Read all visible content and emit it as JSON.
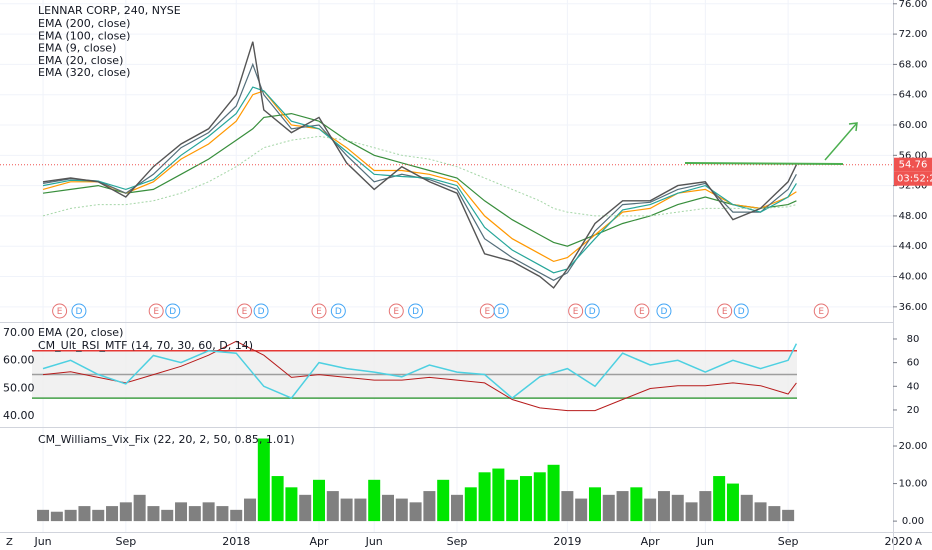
{
  "chart_data": [
    {
      "type": "line",
      "title": "LENNAR CORP, 240, NYSE",
      "xlim": [
        -1.56,
        30.8
      ],
      "xticks": [
        {
          "value": 0,
          "label": "Jun"
        },
        {
          "value": 3,
          "label": "Sep"
        },
        {
          "value": 7,
          "label": "2018"
        },
        {
          "value": 10,
          "label": "Apr"
        },
        {
          "value": 12,
          "label": "Jun"
        },
        {
          "value": 15,
          "label": "Sep"
        },
        {
          "value": 19,
          "label": "2019"
        },
        {
          "value": 22,
          "label": "Apr"
        },
        {
          "value": 24,
          "label": "Jun"
        },
        {
          "value": 27,
          "label": "Sep"
        },
        {
          "value": 31,
          "label": "2020"
        }
      ],
      "ylim": [
        34.0,
        76.5
      ],
      "yticks": [
        {
          "value": 36,
          "label": "36.00"
        },
        {
          "value": 40,
          "label": "40.00"
        },
        {
          "value": 44,
          "label": "44.00"
        },
        {
          "value": 48,
          "label": "48.00"
        },
        {
          "value": 52,
          "label": "52.00"
        },
        {
          "value": 56,
          "label": "56.00"
        },
        {
          "value": 60,
          "label": "60.00"
        },
        {
          "value": 64,
          "label": "64.00"
        },
        {
          "value": 68,
          "label": "68.00"
        },
        {
          "value": 72,
          "label": "72.00"
        },
        {
          "value": 76,
          "label": "76.00"
        }
      ],
      "grid": true,
      "x": [
        0,
        1,
        2,
        3,
        4,
        5,
        6,
        7,
        7.6,
        8,
        9,
        10,
        11,
        12,
        13,
        14,
        15,
        16,
        17,
        18,
        18.5,
        19,
        20,
        21,
        22,
        23,
        24,
        25,
        26,
        27,
        27.3
      ],
      "values": [
        52.5,
        53,
        52.5,
        50.5,
        54.5,
        57.5,
        59.5,
        64,
        71,
        62,
        59,
        61,
        55,
        51.5,
        54.5,
        52.5,
        51,
        43,
        42,
        40,
        38.5,
        41,
        47,
        50,
        50,
        52,
        52.5,
        47.5,
        49,
        52.5,
        54.76
      ],
      "color": "#555555",
      "series": [
        {
          "name": "EMA (200, close)",
          "color": "#388e3c",
          "values": [
            51,
            51.5,
            52,
            51,
            51.5,
            53.5,
            55.5,
            58,
            59.5,
            61,
            61.5,
            60.5,
            58,
            56,
            55,
            54,
            53,
            50,
            47.5,
            45.5,
            44.5,
            44,
            45.5,
            47,
            48,
            49.5,
            50.5,
            49.5,
            49,
            49.5,
            50
          ]
        },
        {
          "name": "EMA (100, close)",
          "color": "#ff9800",
          "values": [
            51.5,
            52.5,
            52.5,
            51,
            52.5,
            55.5,
            57.5,
            60.5,
            64,
            64.5,
            60,
            59.5,
            57,
            54,
            54,
            53.5,
            52.5,
            48,
            45,
            43,
            42,
            42.5,
            45.5,
            48.5,
            49,
            51,
            51.5,
            49.5,
            49,
            50.5,
            51.2
          ]
        },
        {
          "name": "EMA (9, close)",
          "color": "#546e7a",
          "values": [
            52.3,
            52.9,
            52.6,
            51,
            53.5,
            57,
            59,
            62.5,
            68,
            64,
            59.5,
            60,
            56,
            52.5,
            53.5,
            52.8,
            51.5,
            45,
            42.5,
            40.5,
            39.5,
            40.5,
            46,
            49.5,
            49.8,
            51.5,
            52.3,
            48.5,
            48.5,
            51.5,
            53.5
          ]
        },
        {
          "name": "EMA (20, close)",
          "color": "#26a69a",
          "values": [
            52,
            52.7,
            52.6,
            51.5,
            52.8,
            56,
            58.5,
            61.5,
            65,
            64.5,
            60.5,
            59.5,
            56.5,
            53.5,
            53.2,
            53,
            52,
            46.5,
            43.5,
            41.5,
            40.5,
            41,
            45,
            48.8,
            49.5,
            51,
            52,
            49.5,
            48.5,
            50.5,
            52.3
          ]
        },
        {
          "name": "EMA (320, close)",
          "color": "#a5d6a7",
          "values": [
            48,
            49,
            49.5,
            49.5,
            50,
            51,
            52.5,
            54.5,
            56,
            57,
            58,
            58.5,
            58,
            57,
            56,
            55.5,
            54.5,
            53,
            51.5,
            50,
            49,
            48.5,
            48,
            48,
            48,
            48.5,
            49,
            49,
            49,
            49.2,
            49.5
          ]
        }
      ],
      "last_price": 54.76,
      "countdown": "03:52:2",
      "events": [
        {
          "label": "E",
          "x": 0.6
        },
        {
          "label": "D",
          "x": 1.3
        },
        {
          "label": "E",
          "x": 4.1
        },
        {
          "label": "D",
          "x": 4.7
        },
        {
          "label": "E",
          "x": 7.3
        },
        {
          "label": "D",
          "x": 7.9
        },
        {
          "label": "E",
          "x": 10.0
        },
        {
          "label": "D",
          "x": 10.7
        },
        {
          "label": "E",
          "x": 12.8
        },
        {
          "label": "D",
          "x": 13.5
        },
        {
          "label": "E",
          "x": 16.1
        },
        {
          "label": "D",
          "x": 16.6
        },
        {
          "label": "E",
          "x": 19.3
        },
        {
          "label": "D",
          "x": 19.9
        },
        {
          "label": "E",
          "x": 21.7
        },
        {
          "label": "D",
          "x": 22.5
        },
        {
          "label": "E",
          "x": 24.7
        },
        {
          "label": "D",
          "x": 25.3
        },
        {
          "label": "E",
          "x": 28.2
        }
      ]
    },
    {
      "type": "line",
      "ylim": [
        36.1,
        73.6
      ],
      "yticks": [
        {
          "value": 40,
          "label": "40.00"
        },
        {
          "value": 50,
          "label": "50.00"
        },
        {
          "value": 60,
          "label": "60.00"
        },
        {
          "value": 70,
          "label": "70.00"
        }
      ],
      "y2lim": [
        5.6,
        93.5
      ],
      "y2ticks": [
        20,
        40,
        60,
        80
      ],
      "levels": [
        {
          "value": 70,
          "color": "#e53935"
        },
        {
          "value": 50,
          "color": "#9e9e9e"
        },
        {
          "value": 30,
          "color": "#43a047"
        }
      ],
      "x": [
        0,
        1,
        2,
        3,
        4,
        5,
        6,
        7,
        8,
        9,
        10,
        11,
        12,
        13,
        14,
        15,
        16,
        17,
        18,
        19,
        20,
        21,
        22,
        23,
        24,
        25,
        26,
        27,
        27.3
      ],
      "series": [
        {
          "name": "EMA (20, close)",
          "color": "#b71c1c",
          "axis": "y",
          "values": [
            55,
            56,
            54,
            52,
            55,
            58,
            62,
            67,
            62,
            54,
            55,
            54,
            53,
            53,
            54,
            53,
            52,
            46,
            43,
            42,
            42,
            46,
            50,
            51,
            51,
            52,
            51,
            48,
            52
          ]
        },
        {
          "name": "CM_Ult_RSI_MTF (14, 70, 30, 60, D, 14)",
          "color": "#4dd0e1",
          "axis": "y2",
          "values": [
            55,
            62,
            50,
            42,
            66,
            60,
            70,
            68,
            40,
            30,
            60,
            55,
            52,
            48,
            58,
            52,
            50,
            30,
            48,
            55,
            40,
            68,
            58,
            62,
            52,
            62,
            55,
            62,
            76
          ]
        }
      ]
    },
    {
      "type": "bar",
      "title": "CM_Williams_Vix_Fix (22, 20, 2, 50, 0.85, 1.01)",
      "ylim": [
        -2.9,
        24.8
      ],
      "yticks": [
        {
          "value": 0,
          "label": "0.00"
        },
        {
          "value": 10,
          "label": "10.00"
        },
        {
          "value": 20,
          "label": "20.00"
        }
      ],
      "x": [
        0,
        0.5,
        1,
        1.5,
        2,
        2.5,
        3,
        3.5,
        4,
        4.5,
        5,
        5.5,
        6,
        6.5,
        7,
        7.5,
        8,
        8.5,
        9,
        9.5,
        10,
        10.5,
        11,
        11.5,
        12,
        12.5,
        13,
        13.5,
        14,
        14.5,
        15,
        15.5,
        16,
        16.5,
        17,
        17.5,
        18,
        18.5,
        19,
        19.5,
        20,
        20.5,
        21,
        21.5,
        22,
        22.5,
        23,
        23.5,
        24,
        24.5,
        25,
        25.5,
        26,
        26.5,
        27
      ],
      "values": [
        3,
        2.5,
        3,
        4,
        3,
        4,
        5,
        7,
        4,
        3,
        5,
        4,
        5,
        4,
        3,
        6,
        22,
        12,
        9,
        7,
        11,
        8,
        6,
        6,
        11,
        7,
        6,
        5,
        8,
        11,
        7,
        9,
        13,
        14,
        11,
        12,
        13,
        15,
        8,
        6,
        9,
        7,
        8,
        9,
        6,
        8,
        7,
        5,
        8,
        12,
        10,
        7,
        5,
        4,
        3
      ],
      "colors": [
        "#808080",
        "#808080",
        "#808080",
        "#808080",
        "#808080",
        "#808080",
        "#808080",
        "#808080",
        "#808080",
        "#808080",
        "#808080",
        "#808080",
        "#808080",
        "#808080",
        "#808080",
        "#808080",
        "#00e600",
        "#00e600",
        "#00e600",
        "#808080",
        "#00e600",
        "#808080",
        "#808080",
        "#808080",
        "#00e600",
        "#808080",
        "#808080",
        "#808080",
        "#808080",
        "#00e600",
        "#808080",
        "#00e600",
        "#00e600",
        "#00e600",
        "#00e600",
        "#00e600",
        "#00e600",
        "#00e600",
        "#808080",
        "#808080",
        "#00e600",
        "#808080",
        "#808080",
        "#00e600",
        "#808080",
        "#808080",
        "#808080",
        "#808080",
        "#808080",
        "#00e600",
        "#00e600",
        "#808080",
        "#808080",
        "#808080",
        "#808080"
      ]
    }
  ],
  "ui": {
    "left_button": "Z",
    "right_button": "A"
  }
}
